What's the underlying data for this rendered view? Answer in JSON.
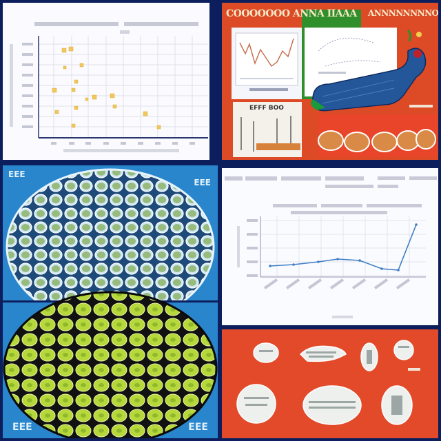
{
  "top_right": {
    "banner_left": "COOOOOOO ANNA IIAAA",
    "banner_right": "ANNNNNNNNOO",
    "inset_caption": "EFFF BOO"
  },
  "bottom_left": {
    "corner_tl": "EEE",
    "corner_tr": "EEE",
    "corner_bl": "EEE",
    "corner_br": "EEE"
  },
  "colors": {
    "navy": "#0c1f5c",
    "red": "#dd4a26",
    "blue": "#2a86cc",
    "lime": "#b6d83a",
    "series": "#3f7ec4"
  }
}
